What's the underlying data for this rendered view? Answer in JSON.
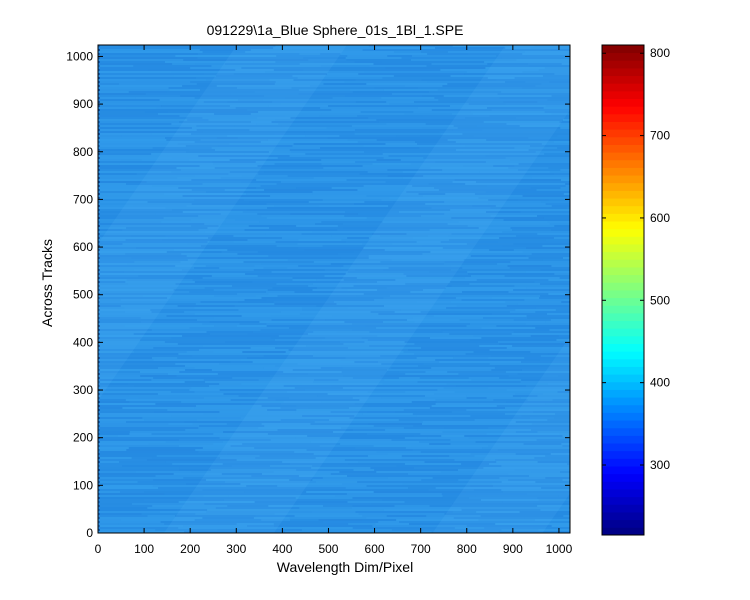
{
  "chart_data": {
    "type": "heatmap",
    "title": "091229\\1a_Blue Sphere_01s_1Bl_1.SPE",
    "xlabel": "Wavelength Dim/Pixel",
    "ylabel": "Across Tracks",
    "xlim": [
      0,
      1024
    ],
    "ylim": [
      0,
      1024
    ],
    "x_ticks": [
      0,
      100,
      200,
      300,
      400,
      500,
      600,
      700,
      800,
      900,
      1000
    ],
    "y_ticks": [
      0,
      100,
      200,
      300,
      400,
      500,
      600,
      700,
      800,
      900,
      1000
    ],
    "colorbar": {
      "colormap": "jet",
      "range": [
        215,
        810
      ],
      "ticks": [
        300,
        400,
        500,
        600,
        700,
        800
      ]
    },
    "field": {
      "typical_value": 390,
      "variation": "uniform with fine horizontal streaks and faint diagonal banding",
      "min_color": "#1e7fdc",
      "max_color": "#3aa6f0"
    }
  }
}
